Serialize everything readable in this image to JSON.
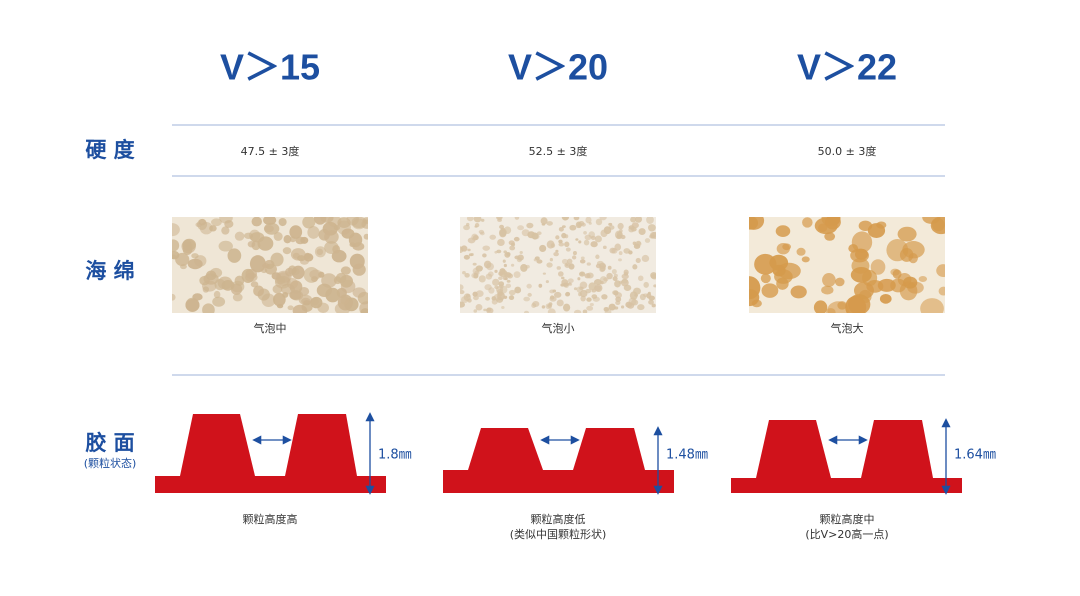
{
  "columns": [
    {
      "header": "V＞15",
      "hardness": "47.5 ± 3度",
      "sponge_caption": "气泡中",
      "thickness": "1.8㎜",
      "rubber_caption": [
        "颗粒高度高"
      ]
    },
    {
      "header": "V＞20",
      "hardness": "52.5 ± 3度",
      "sponge_caption": "气泡小",
      "thickness": "1.48㎜",
      "rubber_caption": [
        "颗粒高度低",
        "(类似中国颗粒形状)"
      ]
    },
    {
      "header": "V＞22",
      "hardness": "50.0 ± 3度",
      "sponge_caption": "气泡大",
      "thickness": "1.64㎜",
      "rubber_caption": [
        "颗粒高度中",
        "(比V>20高一点)"
      ]
    }
  ],
  "rows": {
    "hardness": "硬 度",
    "sponge": "海 绵",
    "rubber": "胶 面",
    "rubber_note": "(颗粒状态)"
  }
}
